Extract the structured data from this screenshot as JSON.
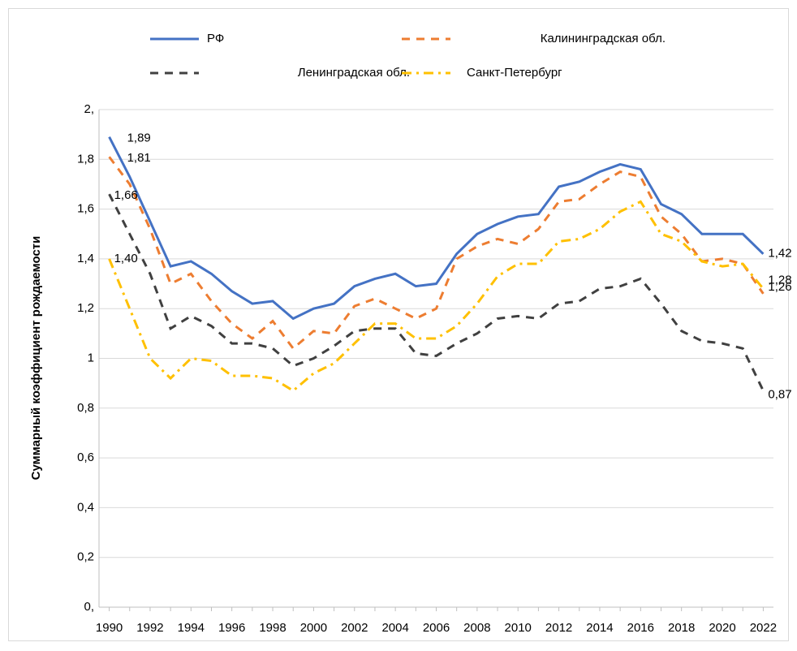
{
  "chart_data": {
    "type": "line",
    "y_label": "Суммарный коэффициент рождаемости",
    "x": [
      1990,
      1991,
      1992,
      1993,
      1994,
      1995,
      1996,
      1997,
      1998,
      1999,
      2000,
      2001,
      2002,
      2003,
      2004,
      2005,
      2006,
      2007,
      2008,
      2009,
      2010,
      2011,
      2012,
      2013,
      2014,
      2015,
      2016,
      2017,
      2018,
      2019,
      2020,
      2021,
      2022
    ],
    "xlim": [
      1989.5,
      2022.5
    ],
    "xticks": [
      1990,
      1992,
      1994,
      1996,
      1998,
      2000,
      2002,
      2004,
      2006,
      2008,
      2010,
      2012,
      2014,
      2016,
      2018,
      2020,
      2022
    ],
    "ylim": [
      0,
      2
    ],
    "yticks": [
      {
        "value": 0,
        "label": "0,"
      },
      {
        "value": 0.2,
        "label": "0,2"
      },
      {
        "value": 0.4,
        "label": "0,4"
      },
      {
        "value": 0.6,
        "label": "0,6"
      },
      {
        "value": 0.8,
        "label": "0,8"
      },
      1,
      {
        "value": 1.2,
        "label": "1,2"
      },
      {
        "value": 1.4,
        "label": "1,4"
      },
      {
        "value": 1.6,
        "label": "1,6"
      },
      {
        "value": 1.8,
        "label": "1,8"
      },
      {
        "value": 2,
        "label": "2,"
      }
    ],
    "grid": true,
    "legend": "top",
    "series": [
      {
        "name": "РФ",
        "color": "#4472c4",
        "style": "solid",
        "values": [
          1.89,
          1.73,
          1.55,
          1.37,
          1.39,
          1.34,
          1.27,
          1.22,
          1.23,
          1.16,
          1.2,
          1.22,
          1.29,
          1.32,
          1.34,
          1.29,
          1.3,
          1.42,
          1.5,
          1.54,
          1.57,
          1.58,
          1.69,
          1.71,
          1.75,
          1.78,
          1.76,
          1.62,
          1.58,
          1.5,
          1.5,
          1.5,
          1.42
        ],
        "value_labels": [
          "1,89",
          null,
          null,
          null,
          null,
          null,
          null,
          null,
          null,
          null,
          null,
          null,
          null,
          null,
          null,
          null,
          null,
          null,
          null,
          null,
          null,
          null,
          null,
          null,
          null,
          null,
          null,
          null,
          null,
          null,
          null,
          null,
          "1,42"
        ]
      },
      {
        "name": "Калининградская обл.",
        "color": "#ed7d31",
        "style": "dashed",
        "values": [
          1.81,
          1.7,
          1.52,
          1.3,
          1.34,
          1.23,
          1.14,
          1.08,
          1.15,
          1.04,
          1.11,
          1.1,
          1.21,
          1.24,
          1.2,
          1.16,
          1.2,
          1.4,
          1.45,
          1.48,
          1.46,
          1.52,
          1.63,
          1.64,
          1.7,
          1.75,
          1.73,
          1.57,
          1.5,
          1.39,
          1.4,
          1.38,
          1.26
        ],
        "value_labels": [
          "1,81",
          null,
          null,
          null,
          null,
          null,
          null,
          null,
          null,
          null,
          null,
          null,
          null,
          null,
          null,
          null,
          null,
          null,
          null,
          null,
          null,
          null,
          null,
          null,
          null,
          null,
          null,
          null,
          null,
          null,
          null,
          null,
          "1,26"
        ]
      },
      {
        "name": "Ленинградская обл.",
        "color": "#404040",
        "style": "dashed",
        "values": [
          1.66,
          1.5,
          1.34,
          1.12,
          1.17,
          1.13,
          1.06,
          1.06,
          1.04,
          0.97,
          1.0,
          1.05,
          1.11,
          1.12,
          1.12,
          1.02,
          1.01,
          1.06,
          1.1,
          1.16,
          1.17,
          1.16,
          1.22,
          1.23,
          1.28,
          1.29,
          1.32,
          1.22,
          1.11,
          1.07,
          1.06,
          1.04,
          0.87
        ],
        "value_labels": [
          "1,66",
          null,
          null,
          null,
          null,
          null,
          null,
          null,
          null,
          null,
          null,
          null,
          null,
          null,
          null,
          null,
          null,
          null,
          null,
          null,
          null,
          null,
          null,
          null,
          null,
          null,
          null,
          null,
          null,
          null,
          null,
          null,
          "0,87"
        ]
      },
      {
        "name": "Санкт-Петербург",
        "color": "#ffc000",
        "style": "dashdot",
        "values": [
          1.4,
          1.2,
          1.0,
          0.92,
          1.0,
          0.99,
          0.93,
          0.93,
          0.92,
          0.87,
          0.94,
          0.98,
          1.06,
          1.14,
          1.14,
          1.08,
          1.08,
          1.13,
          1.22,
          1.33,
          1.38,
          1.38,
          1.47,
          1.48,
          1.52,
          1.59,
          1.63,
          1.5,
          1.47,
          1.39,
          1.37,
          1.38,
          1.28
        ],
        "value_labels": [
          "1,40",
          null,
          null,
          null,
          null,
          null,
          null,
          null,
          null,
          null,
          null,
          null,
          null,
          null,
          null,
          null,
          null,
          null,
          null,
          null,
          null,
          null,
          null,
          null,
          null,
          null,
          null,
          null,
          null,
          null,
          null,
          null,
          "1,28"
        ]
      }
    ]
  }
}
